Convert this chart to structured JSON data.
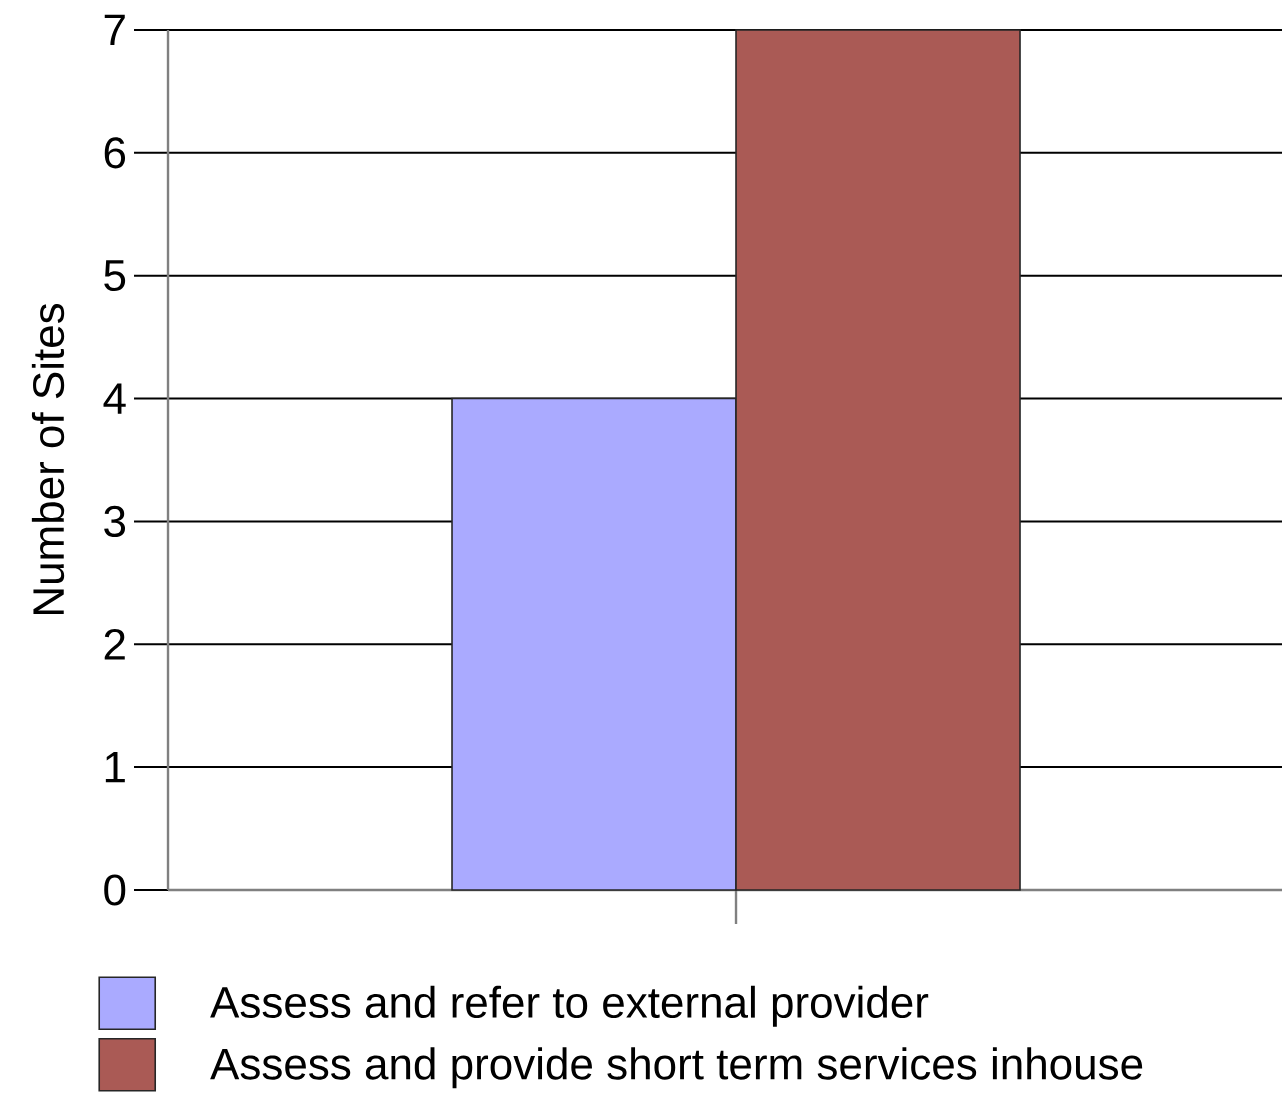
{
  "chart_data": {
    "type": "bar",
    "ylabel": "Number of Sites",
    "categories": [
      null
    ],
    "series": [
      {
        "name": "Assess and refer to external provider",
        "color": "#aaaaff",
        "values": [
          4
        ]
      },
      {
        "name": "Assess and provide short term services inhouse",
        "color": "#aa5a55",
        "values": [
          7
        ]
      }
    ],
    "ylim": [
      0,
      7
    ],
    "yticks": [
      0,
      1,
      2,
      3,
      4,
      5,
      6,
      7
    ],
    "grid": "y",
    "legend": "bottom"
  }
}
